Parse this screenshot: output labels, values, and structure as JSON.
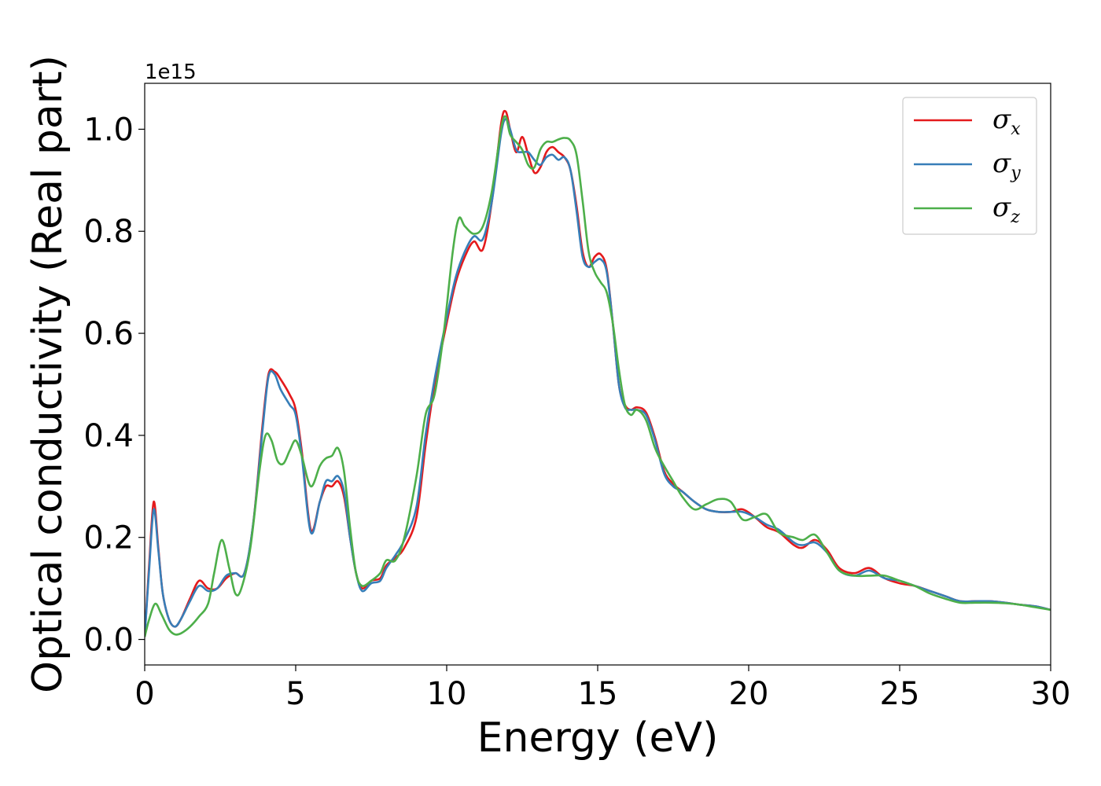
{
  "chart_data": {
    "type": "line",
    "title": "",
    "xlabel": "Energy (eV)",
    "ylabel": "Optical conductivity (Real part)",
    "offset_text": "1e15",
    "xlim": [
      0,
      30
    ],
    "ylim": [
      -0.05,
      1.09
    ],
    "xticks": [
      0,
      5,
      10,
      15,
      20,
      25,
      30
    ],
    "xtick_labels": [
      "0",
      "5",
      "10",
      "15",
      "20",
      "25",
      "30"
    ],
    "yticks": [
      0.0,
      0.2,
      0.4,
      0.6,
      0.8,
      1.0
    ],
    "ytick_labels": [
      "0.0",
      "0.2",
      "0.4",
      "0.6",
      "0.8",
      "1.0"
    ],
    "grid": false,
    "legend": "top-right",
    "series": [
      {
        "name": "σx",
        "legend_symbol": "σ",
        "legend_subscript": "x",
        "color": "#e41a1c",
        "x": [
          0,
          0.15,
          0.3,
          0.45,
          0.6,
          0.8,
          1.0,
          1.2,
          1.5,
          1.8,
          2.1,
          2.4,
          2.7,
          3.0,
          3.3,
          3.6,
          3.9,
          4.1,
          4.3,
          4.5,
          4.8,
          5.0,
          5.2,
          5.5,
          5.8,
          6.0,
          6.2,
          6.4,
          6.6,
          6.8,
          7.0,
          7.2,
          7.5,
          7.8,
          8.0,
          8.3,
          8.6,
          9.0,
          9.3,
          9.6,
          10.0,
          10.3,
          10.6,
          10.9,
          11.2,
          11.5,
          11.8,
          11.95,
          12.1,
          12.3,
          12.5,
          12.7,
          12.9,
          13.1,
          13.3,
          13.5,
          13.7,
          13.9,
          14.1,
          14.3,
          14.5,
          14.7,
          14.9,
          15.1,
          15.3,
          15.5,
          15.7,
          15.9,
          16.1,
          16.3,
          16.6,
          16.9,
          17.2,
          17.5,
          17.8,
          18.2,
          18.6,
          19.0,
          19.4,
          19.8,
          20.2,
          20.6,
          21.0,
          21.5,
          21.8,
          22.2,
          22.6,
          23.0,
          23.5,
          24.0,
          24.5,
          25.0,
          25.5,
          26.0,
          26.5,
          27.0,
          27.5,
          28.0,
          28.5,
          29.0,
          29.5,
          30.0
        ],
        "y": [
          0.005,
          0.15,
          0.27,
          0.18,
          0.09,
          0.04,
          0.025,
          0.04,
          0.08,
          0.115,
          0.1,
          0.1,
          0.12,
          0.13,
          0.13,
          0.23,
          0.42,
          0.52,
          0.525,
          0.51,
          0.48,
          0.45,
          0.37,
          0.215,
          0.27,
          0.3,
          0.3,
          0.31,
          0.28,
          0.2,
          0.13,
          0.1,
          0.115,
          0.12,
          0.145,
          0.16,
          0.18,
          0.24,
          0.38,
          0.5,
          0.62,
          0.7,
          0.75,
          0.78,
          0.765,
          0.86,
          1.01,
          1.035,
          1.0,
          0.955,
          0.985,
          0.95,
          0.915,
          0.925,
          0.955,
          0.965,
          0.955,
          0.945,
          0.92,
          0.85,
          0.76,
          0.73,
          0.75,
          0.755,
          0.725,
          0.62,
          0.5,
          0.46,
          0.45,
          0.455,
          0.445,
          0.395,
          0.33,
          0.305,
          0.29,
          0.27,
          0.255,
          0.25,
          0.25,
          0.255,
          0.24,
          0.22,
          0.21,
          0.185,
          0.18,
          0.195,
          0.175,
          0.14,
          0.13,
          0.14,
          0.12,
          0.11,
          0.105,
          0.095,
          0.085,
          0.075,
          0.075,
          0.075,
          0.072,
          0.068,
          0.065,
          0.058
        ]
      },
      {
        "name": "σy",
        "legend_symbol": "σ",
        "legend_subscript": "y",
        "color": "#377eb8",
        "x": [
          0,
          0.15,
          0.3,
          0.45,
          0.6,
          0.8,
          1.0,
          1.2,
          1.5,
          1.8,
          2.1,
          2.4,
          2.7,
          3.0,
          3.3,
          3.6,
          3.9,
          4.1,
          4.3,
          4.5,
          4.8,
          5.0,
          5.2,
          5.5,
          5.8,
          6.0,
          6.2,
          6.4,
          6.6,
          6.8,
          7.0,
          7.2,
          7.5,
          7.8,
          8.0,
          8.3,
          8.6,
          9.0,
          9.3,
          9.6,
          10.0,
          10.3,
          10.6,
          10.9,
          11.2,
          11.5,
          11.8,
          11.95,
          12.1,
          12.3,
          12.5,
          12.7,
          12.9,
          13.1,
          13.3,
          13.5,
          13.7,
          13.9,
          14.1,
          14.3,
          14.5,
          14.7,
          14.9,
          15.1,
          15.3,
          15.5,
          15.7,
          15.9,
          16.1,
          16.3,
          16.6,
          16.9,
          17.2,
          17.5,
          17.8,
          18.2,
          18.6,
          19.0,
          19.4,
          19.8,
          20.2,
          20.6,
          21.0,
          21.5,
          21.8,
          22.2,
          22.6,
          23.0,
          23.5,
          24.0,
          24.5,
          25.0,
          25.5,
          26.0,
          26.5,
          27.0,
          27.5,
          28.0,
          28.5,
          29.0,
          29.5,
          30.0
        ],
        "y": [
          0.005,
          0.14,
          0.255,
          0.175,
          0.09,
          0.04,
          0.025,
          0.04,
          0.075,
          0.105,
          0.095,
          0.1,
          0.125,
          0.13,
          0.13,
          0.23,
          0.41,
          0.515,
          0.52,
          0.49,
          0.46,
          0.44,
          0.36,
          0.21,
          0.27,
          0.31,
          0.31,
          0.32,
          0.29,
          0.2,
          0.13,
          0.095,
          0.11,
          0.115,
          0.14,
          0.165,
          0.195,
          0.26,
          0.4,
          0.51,
          0.63,
          0.71,
          0.76,
          0.79,
          0.785,
          0.86,
          0.99,
          1.02,
          1.0,
          0.96,
          0.955,
          0.955,
          0.94,
          0.93,
          0.945,
          0.95,
          0.94,
          0.945,
          0.92,
          0.84,
          0.75,
          0.73,
          0.74,
          0.745,
          0.72,
          0.62,
          0.5,
          0.455,
          0.45,
          0.45,
          0.44,
          0.39,
          0.325,
          0.3,
          0.29,
          0.27,
          0.255,
          0.25,
          0.25,
          0.25,
          0.24,
          0.225,
          0.215,
          0.19,
          0.185,
          0.19,
          0.17,
          0.135,
          0.125,
          0.135,
          0.12,
          0.115,
          0.105,
          0.095,
          0.085,
          0.075,
          0.075,
          0.075,
          0.072,
          0.068,
          0.065,
          0.058
        ]
      },
      {
        "name": "σz",
        "legend_symbol": "σ",
        "legend_subscript": "z",
        "color": "#4daf4a",
        "x": [
          0,
          0.15,
          0.35,
          0.55,
          0.8,
          1.0,
          1.2,
          1.5,
          1.8,
          2.1,
          2.3,
          2.55,
          2.8,
          3.0,
          3.2,
          3.5,
          3.8,
          4.0,
          4.2,
          4.4,
          4.6,
          4.8,
          5.0,
          5.2,
          5.5,
          5.8,
          6.0,
          6.2,
          6.4,
          6.6,
          6.8,
          7.0,
          7.2,
          7.5,
          7.8,
          8.0,
          8.3,
          8.6,
          9.0,
          9.3,
          9.6,
          9.9,
          10.2,
          10.4,
          10.6,
          10.9,
          11.2,
          11.5,
          11.8,
          11.95,
          12.1,
          12.3,
          12.5,
          12.7,
          12.9,
          13.1,
          13.3,
          13.5,
          13.7,
          13.9,
          14.1,
          14.3,
          14.5,
          14.7,
          14.9,
          15.1,
          15.3,
          15.5,
          15.7,
          15.9,
          16.1,
          16.3,
          16.6,
          16.9,
          17.2,
          17.5,
          17.8,
          18.2,
          18.6,
          19.0,
          19.4,
          19.8,
          20.2,
          20.6,
          21.0,
          21.5,
          21.8,
          22.2,
          22.6,
          23.0,
          23.5,
          24.0,
          24.5,
          25.0,
          25.5,
          26.0,
          26.5,
          27.0,
          27.5,
          28.0,
          28.5,
          29.0,
          29.5,
          30.0
        ],
        "y": [
          0.005,
          0.04,
          0.07,
          0.05,
          0.02,
          0.01,
          0.012,
          0.025,
          0.045,
          0.07,
          0.13,
          0.195,
          0.14,
          0.09,
          0.1,
          0.18,
          0.33,
          0.4,
          0.39,
          0.35,
          0.345,
          0.37,
          0.39,
          0.36,
          0.3,
          0.34,
          0.355,
          0.36,
          0.375,
          0.33,
          0.22,
          0.13,
          0.105,
          0.115,
          0.13,
          0.155,
          0.155,
          0.2,
          0.32,
          0.44,
          0.48,
          0.6,
          0.76,
          0.825,
          0.81,
          0.795,
          0.81,
          0.88,
          1.0,
          1.025,
          0.99,
          0.975,
          0.96,
          0.93,
          0.925,
          0.96,
          0.975,
          0.975,
          0.98,
          0.983,
          0.978,
          0.95,
          0.86,
          0.76,
          0.72,
          0.7,
          0.68,
          0.62,
          0.53,
          0.46,
          0.44,
          0.45,
          0.43,
          0.375,
          0.34,
          0.31,
          0.28,
          0.255,
          0.265,
          0.275,
          0.27,
          0.235,
          0.24,
          0.245,
          0.21,
          0.2,
          0.195,
          0.205,
          0.17,
          0.135,
          0.125,
          0.125,
          0.125,
          0.115,
          0.105,
          0.09,
          0.08,
          0.072,
          0.072,
          0.072,
          0.071,
          0.068,
          0.063,
          0.058
        ]
      }
    ]
  }
}
